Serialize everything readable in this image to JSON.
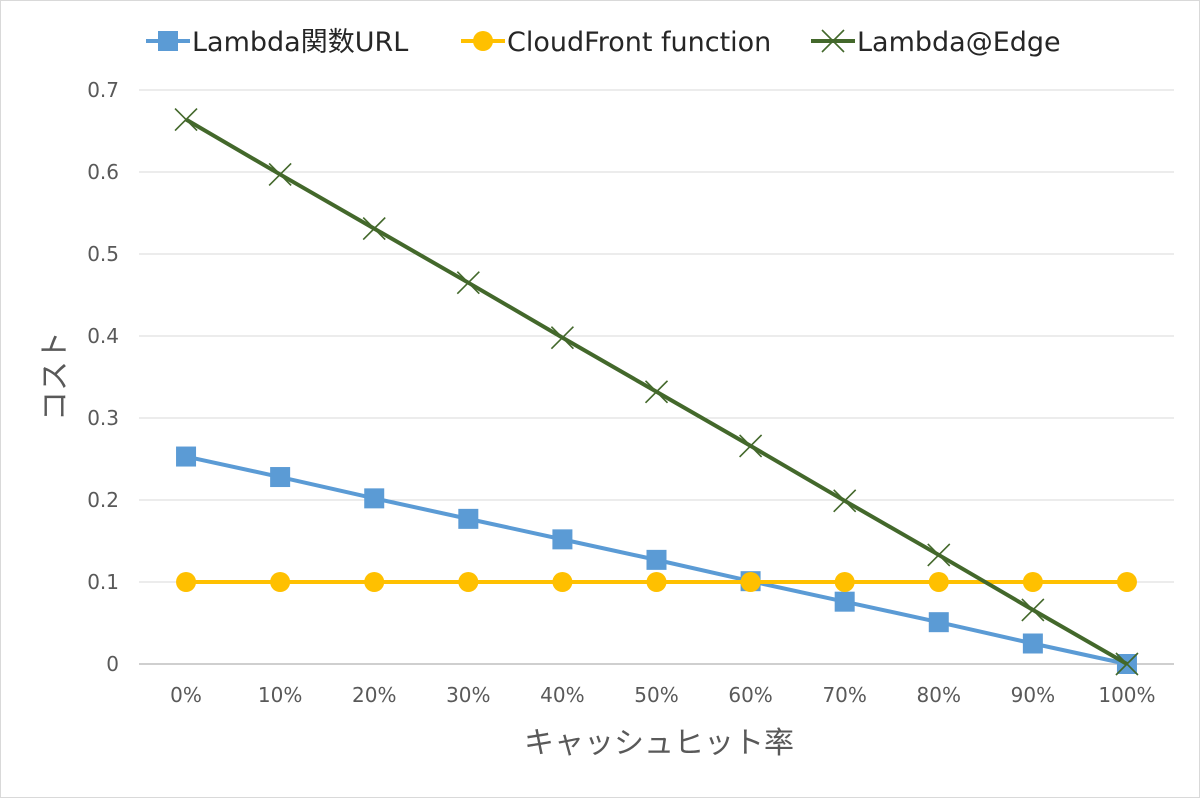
{
  "chart_data": {
    "type": "line",
    "title": "",
    "xlabel": "キャッシュヒット率",
    "ylabel": "コスト",
    "categories": [
      "0%",
      "10%",
      "20%",
      "30%",
      "40%",
      "50%",
      "60%",
      "70%",
      "80%",
      "90%",
      "100%"
    ],
    "y_ticks": [
      "0",
      "0.1",
      "0.2",
      "0.3",
      "0.4",
      "0.5",
      "0.6",
      "0.7"
    ],
    "ylim": [
      0,
      0.7
    ],
    "grid": true,
    "legend_position": "top",
    "series": [
      {
        "name": "Lambda関数URL",
        "color": "#5b9bd5",
        "marker": "square",
        "values": [
          0.253,
          0.228,
          0.202,
          0.177,
          0.152,
          0.127,
          0.101,
          0.076,
          0.051,
          0.025,
          0.0
        ]
      },
      {
        "name": "CloudFront function",
        "color": "#ffc000",
        "marker": "circle",
        "values": [
          0.1,
          0.1,
          0.1,
          0.1,
          0.1,
          0.1,
          0.1,
          0.1,
          0.1,
          0.1,
          0.1
        ]
      },
      {
        "name": "Lambda@Edge",
        "color": "#43682b",
        "marker": "x",
        "values": [
          0.664,
          0.597,
          0.531,
          0.465,
          0.398,
          0.332,
          0.266,
          0.199,
          0.133,
          0.066,
          0.0
        ]
      }
    ]
  }
}
